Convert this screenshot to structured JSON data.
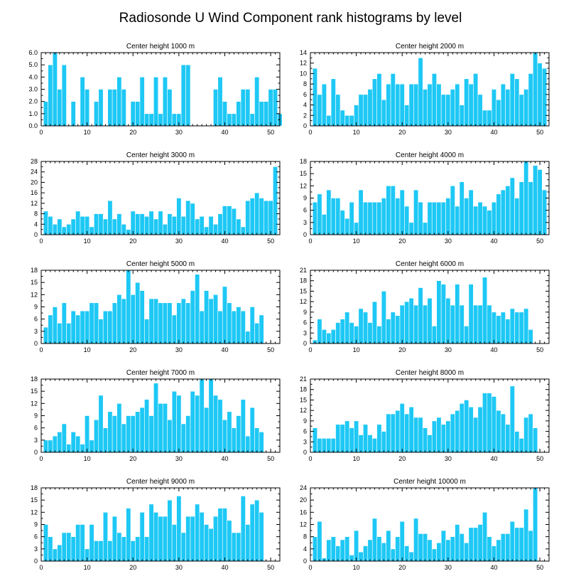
{
  "title": "Radiosonde U Wind Component rank histograms by level",
  "chart_data": [
    {
      "type": "bar",
      "title": "Center height 1000 m",
      "xlabel": "",
      "ylabel": "",
      "xlim": [
        0,
        52
      ],
      "ylim": [
        0,
        6
      ],
      "xticks": [
        0,
        10,
        20,
        30,
        40,
        50
      ],
      "yticks": [
        0,
        1,
        2,
        3,
        4,
        5,
        6
      ],
      "ytick_labels": [
        "0.0",
        "1.0",
        "2.0",
        "3.0",
        "4.0",
        "5.0",
        "6.0"
      ],
      "values": [
        2,
        5,
        6,
        3,
        5,
        0,
        2,
        0,
        4,
        3,
        0,
        2,
        3,
        0,
        3,
        3,
        4,
        3,
        0,
        2,
        2,
        4,
        1,
        1,
        4,
        1,
        4,
        3,
        1,
        1,
        5,
        5,
        0,
        0,
        0,
        0,
        0,
        3,
        4,
        2,
        1,
        1,
        2,
        3,
        3,
        1,
        4,
        2,
        2,
        3,
        3,
        1
      ]
    },
    {
      "type": "bar",
      "title": "Center height 2000 m",
      "xlabel": "",
      "ylabel": "",
      "xlim": [
        0,
        52
      ],
      "ylim": [
        0,
        14
      ],
      "xticks": [
        0,
        10,
        20,
        30,
        40,
        50
      ],
      "yticks": [
        0,
        2,
        4,
        6,
        8,
        10,
        12,
        14
      ],
      "ytick_labels": [
        "0",
        "2",
        "4",
        "6",
        "8",
        "10",
        "12",
        "14"
      ],
      "values": [
        11,
        6,
        8,
        2,
        9,
        6,
        3,
        2,
        2,
        4,
        6,
        6,
        7,
        9,
        10,
        5,
        8,
        10,
        8,
        8,
        4,
        8,
        8,
        13,
        7,
        8,
        10,
        8,
        6,
        6,
        7,
        8,
        4,
        9,
        8,
        10,
        6,
        3,
        3,
        7,
        5,
        8,
        7,
        10,
        9,
        6,
        7,
        10,
        14,
        12,
        11
      ]
    },
    {
      "type": "bar",
      "title": "Center height 3000 m",
      "xlabel": "",
      "ylabel": "",
      "xlim": [
        0,
        52
      ],
      "ylim": [
        0,
        28
      ],
      "xticks": [
        0,
        10,
        20,
        30,
        40,
        50
      ],
      "yticks": [
        0,
        4,
        8,
        12,
        16,
        20,
        24,
        28
      ],
      "ytick_labels": [
        "0",
        "4",
        "8",
        "12",
        "16",
        "20",
        "24",
        "28"
      ],
      "values": [
        9,
        7,
        4,
        6,
        3,
        4,
        6,
        9,
        7,
        7,
        3,
        8,
        8,
        6,
        13,
        6,
        8,
        4,
        2,
        9,
        8,
        8,
        7,
        9,
        6,
        9,
        4,
        8,
        7,
        14,
        7,
        13,
        12,
        6,
        7,
        3,
        7,
        4,
        8,
        11,
        11,
        10,
        6,
        3,
        13,
        14,
        16,
        14,
        13,
        13,
        26
      ]
    },
    {
      "type": "bar",
      "title": "Center height 4000 m",
      "xlabel": "",
      "ylabel": "",
      "xlim": [
        0,
        52
      ],
      "ylim": [
        0,
        18
      ],
      "xticks": [
        0,
        10,
        20,
        30,
        40,
        50
      ],
      "yticks": [
        0,
        3,
        6,
        9,
        12,
        15,
        18
      ],
      "ytick_labels": [
        "0",
        "3",
        "6",
        "9",
        "12",
        "15",
        "18"
      ],
      "values": [
        8,
        10,
        5,
        11,
        9,
        9,
        6,
        4,
        8,
        3,
        11,
        8,
        8,
        8,
        8,
        9,
        12,
        12,
        9,
        11,
        7,
        3,
        11,
        8,
        3,
        8,
        8,
        8,
        8,
        9,
        12,
        7,
        13,
        9,
        11,
        7,
        8,
        7,
        6,
        8,
        10,
        11,
        12,
        14,
        9,
        13,
        18,
        13,
        17,
        16,
        11
      ]
    },
    {
      "type": "bar",
      "title": "Center height 5000 m",
      "xlabel": "",
      "ylabel": "",
      "xlim": [
        0,
        52
      ],
      "ylim": [
        0,
        18
      ],
      "xticks": [
        0,
        10,
        20,
        30,
        40,
        50
      ],
      "yticks": [
        0,
        3,
        6,
        9,
        12,
        15,
        18
      ],
      "ytick_labels": [
        "0",
        "3",
        "6",
        "9",
        "12",
        "15",
        "18"
      ],
      "values": [
        4,
        7,
        9,
        5,
        10,
        5,
        8,
        7,
        8,
        8,
        10,
        10,
        6,
        8,
        8,
        10,
        12,
        11,
        18,
        12,
        15,
        13,
        6,
        11,
        11,
        10,
        10,
        10,
        7,
        10,
        11,
        10,
        13,
        17,
        8,
        13,
        11,
        12,
        8,
        14,
        10,
        8,
        9,
        8,
        3,
        9,
        5,
        7
      ]
    },
    {
      "type": "bar",
      "title": "Center height 6000 m",
      "xlabel": "",
      "ylabel": "",
      "xlim": [
        0,
        52
      ],
      "ylim": [
        0,
        21
      ],
      "xticks": [
        0,
        10,
        20,
        30,
        40,
        50
      ],
      "yticks": [
        0,
        3,
        6,
        9,
        12,
        15,
        18,
        21
      ],
      "ytick_labels": [
        "0",
        "3",
        "6",
        "9",
        "12",
        "15",
        "18",
        "21"
      ],
      "values": [
        1,
        7,
        4,
        3,
        4,
        6,
        7,
        9,
        6,
        5,
        10,
        9,
        6,
        12,
        5,
        15,
        7,
        9,
        8,
        11,
        12,
        13,
        11,
        16,
        11,
        13,
        5,
        18,
        17,
        13,
        11,
        17,
        11,
        5,
        17,
        11,
        11,
        19,
        11,
        9,
        8,
        9,
        7,
        10,
        9,
        9,
        10,
        4
      ]
    },
    {
      "type": "bar",
      "title": "Center height 7000 m",
      "xlabel": "",
      "ylabel": "",
      "xlim": [
        0,
        52
      ],
      "ylim": [
        0,
        18
      ],
      "xticks": [
        0,
        10,
        20,
        30,
        40,
        50
      ],
      "yticks": [
        0,
        3,
        6,
        9,
        12,
        15,
        18
      ],
      "ytick_labels": [
        "0",
        "3",
        "6",
        "9",
        "12",
        "15",
        "18"
      ],
      "values": [
        3,
        3,
        4,
        5,
        7,
        2,
        5,
        4,
        2,
        9,
        3,
        8,
        14,
        6,
        10,
        9,
        12,
        7,
        9,
        9,
        10,
        11,
        13,
        9,
        17,
        12,
        12,
        8,
        15,
        14,
        7,
        9,
        15,
        14,
        18,
        11,
        18,
        14,
        13,
        8,
        10,
        6,
        9,
        13,
        4,
        11,
        6,
        5
      ]
    },
    {
      "type": "bar",
      "title": "Center height 8000 m",
      "xlabel": "",
      "ylabel": "",
      "xlim": [
        0,
        52
      ],
      "ylim": [
        0,
        21
      ],
      "xticks": [
        0,
        10,
        20,
        30,
        40,
        50
      ],
      "yticks": [
        0,
        3,
        6,
        9,
        12,
        15,
        18,
        21
      ],
      "ytick_labels": [
        "0",
        "3",
        "6",
        "9",
        "12",
        "15",
        "18",
        "21"
      ],
      "values": [
        7,
        4,
        4,
        4,
        4,
        8,
        8,
        9,
        7,
        9,
        5,
        8,
        5,
        4,
        8,
        6,
        11,
        11,
        12,
        14,
        11,
        13,
        10,
        10,
        7,
        5,
        9,
        10,
        8,
        9,
        11,
        12,
        14,
        15,
        13,
        10,
        13,
        17,
        17,
        16,
        12,
        11,
        8,
        19,
        6,
        4,
        10,
        11,
        7
      ]
    },
    {
      "type": "bar",
      "title": "Center height 9000 m",
      "xlabel": "",
      "ylabel": "",
      "xlim": [
        0,
        52
      ],
      "ylim": [
        0,
        18
      ],
      "xticks": [
        0,
        10,
        20,
        30,
        40,
        50
      ],
      "yticks": [
        0,
        3,
        6,
        9,
        12,
        15,
        18
      ],
      "ytick_labels": [
        "0",
        "3",
        "6",
        "9",
        "12",
        "15",
        "18"
      ],
      "values": [
        9,
        6,
        3,
        4,
        7,
        7,
        6,
        9,
        9,
        3,
        9,
        5,
        5,
        12,
        5,
        11,
        7,
        6,
        13,
        5,
        6,
        12,
        6,
        14,
        12,
        11,
        11,
        15,
        9,
        16,
        7,
        11,
        11,
        14,
        12,
        9,
        8,
        11,
        13,
        13,
        10,
        7,
        7,
        16,
        9,
        14,
        15,
        12
      ]
    },
    {
      "type": "bar",
      "title": "Center height 10000 m",
      "xlabel": "",
      "ylabel": "",
      "xlim": [
        0,
        52
      ],
      "ylim": [
        0,
        24
      ],
      "xticks": [
        0,
        10,
        20,
        30,
        40,
        50
      ],
      "yticks": [
        0,
        4,
        8,
        12,
        16,
        20,
        24
      ],
      "ytick_labels": [
        "0",
        "4",
        "8",
        "12",
        "16",
        "20",
        "24"
      ],
      "values": [
        8,
        13,
        1,
        7,
        8,
        5,
        7,
        8,
        2,
        10,
        3,
        5,
        7,
        14,
        8,
        6,
        10,
        4,
        8,
        13,
        5,
        3,
        14,
        9,
        9,
        7,
        4,
        6,
        10,
        7,
        8,
        12,
        9,
        6,
        11,
        11,
        12,
        16,
        8,
        5,
        7,
        9,
        9,
        13,
        11,
        11,
        17,
        10,
        24
      ]
    }
  ]
}
